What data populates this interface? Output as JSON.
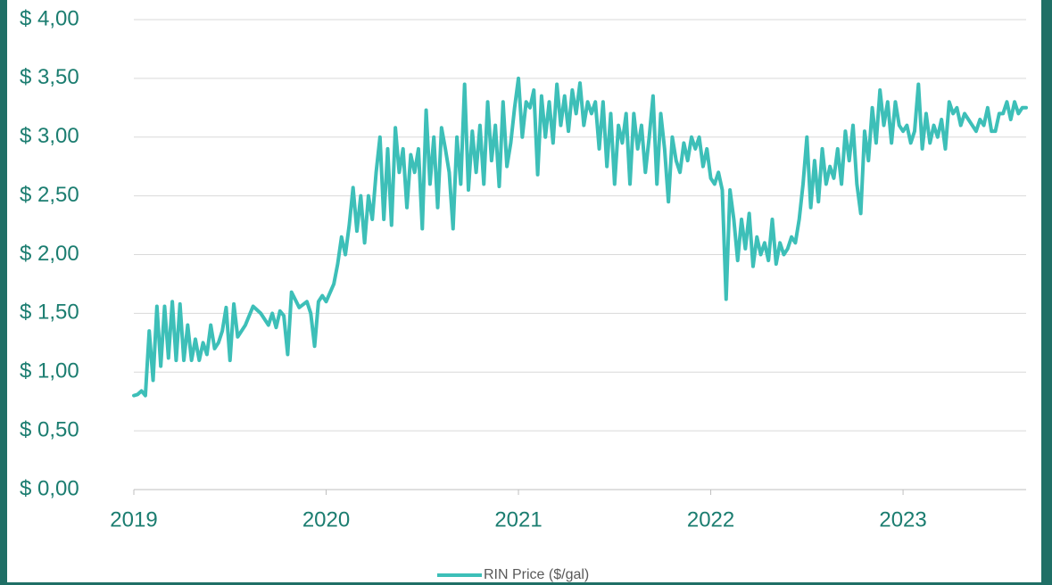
{
  "chart_data": {
    "type": "line",
    "x": [
      2019.0,
      2019.02,
      2019.04,
      2019.06,
      2019.08,
      2019.1,
      2019.12,
      2019.14,
      2019.16,
      2019.18,
      2019.2,
      2019.22,
      2019.24,
      2019.26,
      2019.28,
      2019.3,
      2019.32,
      2019.34,
      2019.36,
      2019.38,
      2019.4,
      2019.42,
      2019.44,
      2019.46,
      2019.48,
      2019.5,
      2019.52,
      2019.54,
      2019.58,
      2019.62,
      2019.66,
      2019.7,
      2019.72,
      2019.74,
      2019.76,
      2019.78,
      2019.8,
      2019.82,
      2019.86,
      2019.9,
      2019.92,
      2019.94,
      2019.96,
      2019.98,
      2020.0,
      2020.04,
      2020.06,
      2020.08,
      2020.1,
      2020.12,
      2020.14,
      2020.16,
      2020.18,
      2020.2,
      2020.22,
      2020.24,
      2020.26,
      2020.28,
      2020.3,
      2020.32,
      2020.34,
      2020.36,
      2020.38,
      2020.4,
      2020.42,
      2020.44,
      2020.46,
      2020.48,
      2020.5,
      2020.52,
      2020.54,
      2020.56,
      2020.58,
      2020.6,
      2020.62,
      2020.64,
      2020.66,
      2020.68,
      2020.7,
      2020.72,
      2020.74,
      2020.76,
      2020.78,
      2020.8,
      2020.82,
      2020.84,
      2020.86,
      2020.88,
      2020.9,
      2020.92,
      2020.94,
      2020.96,
      2020.98,
      2021.0,
      2021.02,
      2021.04,
      2021.06,
      2021.08,
      2021.1,
      2021.12,
      2021.14,
      2021.16,
      2021.18,
      2021.2,
      2021.22,
      2021.24,
      2021.26,
      2021.28,
      2021.3,
      2021.32,
      2021.34,
      2021.36,
      2021.38,
      2021.4,
      2021.42,
      2021.44,
      2021.46,
      2021.48,
      2021.5,
      2021.52,
      2021.54,
      2021.56,
      2021.58,
      2021.6,
      2021.62,
      2021.64,
      2021.66,
      2021.68,
      2021.7,
      2021.72,
      2021.74,
      2021.76,
      2021.78,
      2021.8,
      2021.82,
      2021.84,
      2021.86,
      2021.88,
      2021.9,
      2021.92,
      2021.94,
      2021.96,
      2021.98,
      2022.0,
      2022.02,
      2022.04,
      2022.06,
      2022.08,
      2022.1,
      2022.12,
      2022.14,
      2022.16,
      2022.18,
      2022.2,
      2022.22,
      2022.24,
      2022.26,
      2022.28,
      2022.3,
      2022.32,
      2022.34,
      2022.36,
      2022.38,
      2022.4,
      2022.42,
      2022.44,
      2022.46,
      2022.48,
      2022.5,
      2022.52,
      2022.54,
      2022.56,
      2022.58,
      2022.6,
      2022.62,
      2022.64,
      2022.66,
      2022.68,
      2022.7,
      2022.72,
      2022.74,
      2022.76,
      2022.78,
      2022.8,
      2022.82,
      2022.84,
      2022.86,
      2022.88,
      2022.9,
      2022.92,
      2022.94,
      2022.96,
      2022.98,
      2023.0,
      2023.02,
      2023.04,
      2023.06,
      2023.08,
      2023.1,
      2023.12,
      2023.14,
      2023.16,
      2023.18,
      2023.2,
      2023.22,
      2023.24,
      2023.26,
      2023.28,
      2023.3,
      2023.32,
      2023.34,
      2023.36,
      2023.38,
      2023.4,
      2023.42,
      2023.44,
      2023.46,
      2023.48,
      2023.5,
      2023.52,
      2023.54,
      2023.56,
      2023.58,
      2023.6,
      2023.62,
      2023.64
    ],
    "series": [
      {
        "name": "RIN Price ($/gal)",
        "color": "#3dbfb8",
        "values": [
          0.8,
          0.81,
          0.84,
          0.8,
          1.35,
          0.93,
          1.56,
          1.05,
          1.56,
          1.12,
          1.6,
          1.1,
          1.58,
          1.1,
          1.4,
          1.1,
          1.28,
          1.1,
          1.25,
          1.15,
          1.4,
          1.2,
          1.25,
          1.35,
          1.55,
          1.1,
          1.58,
          1.3,
          1.4,
          1.56,
          1.5,
          1.4,
          1.5,
          1.38,
          1.52,
          1.48,
          1.15,
          1.68,
          1.55,
          1.6,
          1.5,
          1.22,
          1.6,
          1.65,
          1.6,
          1.75,
          1.92,
          2.15,
          2.0,
          2.25,
          2.57,
          2.2,
          2.5,
          2.1,
          2.5,
          2.3,
          2.7,
          3.0,
          2.3,
          2.9,
          2.25,
          3.08,
          2.7,
          2.9,
          2.4,
          2.85,
          2.7,
          2.9,
          2.22,
          3.23,
          2.6,
          3.0,
          2.4,
          3.08,
          2.9,
          2.7,
          2.22,
          3.0,
          2.6,
          3.45,
          2.55,
          3.05,
          2.7,
          3.1,
          2.6,
          3.3,
          2.8,
          3.1,
          2.58,
          3.3,
          2.75,
          2.95,
          3.25,
          3.5,
          3.0,
          3.3,
          3.25,
          3.4,
          2.68,
          3.35,
          3.0,
          3.3,
          2.95,
          3.45,
          3.1,
          3.35,
          3.05,
          3.4,
          3.2,
          3.46,
          3.1,
          3.3,
          3.2,
          3.3,
          2.9,
          3.3,
          2.75,
          3.2,
          2.6,
          3.1,
          2.95,
          3.2,
          2.6,
          3.2,
          2.9,
          3.1,
          2.7,
          3.0,
          3.35,
          2.6,
          3.2,
          2.9,
          2.45,
          3.0,
          2.8,
          2.7,
          2.95,
          2.8,
          3.0,
          2.9,
          3.0,
          2.75,
          2.9,
          2.65,
          2.6,
          2.7,
          2.55,
          1.62,
          2.55,
          2.3,
          1.95,
          2.3,
          2.05,
          2.35,
          1.9,
          2.15,
          2.0,
          2.1,
          1.95,
          2.3,
          1.92,
          2.1,
          2.0,
          2.05,
          2.15,
          2.1,
          2.3,
          2.6,
          3.0,
          2.4,
          2.8,
          2.45,
          2.9,
          2.6,
          2.75,
          2.65,
          2.9,
          2.6,
          3.05,
          2.8,
          3.1,
          2.6,
          2.35,
          3.05,
          2.8,
          3.25,
          2.95,
          3.4,
          3.1,
          3.3,
          2.95,
          3.3,
          3.1,
          3.05,
          3.1,
          2.95,
          3.05,
          3.45,
          2.9,
          3.2,
          2.95,
          3.1,
          3.0,
          3.15,
          2.9,
          3.3,
          3.2,
          3.25,
          3.1,
          3.2,
          3.15,
          3.1,
          3.05,
          3.15,
          3.1,
          3.25,
          3.05,
          3.05,
          3.2,
          3.2,
          3.3,
          3.15,
          3.3,
          3.2,
          3.25,
          3.25
        ]
      }
    ],
    "xlim": [
      2019,
      2023.64
    ],
    "xticks": [
      2019,
      2020,
      2021,
      2022,
      2023
    ],
    "ylim": [
      0,
      4
    ],
    "yticks": [
      {
        "value": 0,
        "label": "$ 0,00"
      },
      {
        "value": 0.5,
        "label": "$ 0,50"
      },
      {
        "value": 1,
        "label": "$ 1,00"
      },
      {
        "value": 1.5,
        "label": "$ 1,50"
      },
      {
        "value": 2,
        "label": "$ 2,00"
      },
      {
        "value": 2.5,
        "label": "$ 2,50"
      },
      {
        "value": 3,
        "label": "$ 3,00"
      },
      {
        "value": 3.5,
        "label": "$ 3,50"
      },
      {
        "value": 4,
        "label": "$ 4,00"
      }
    ],
    "grid": true,
    "legend": "bottom"
  }
}
